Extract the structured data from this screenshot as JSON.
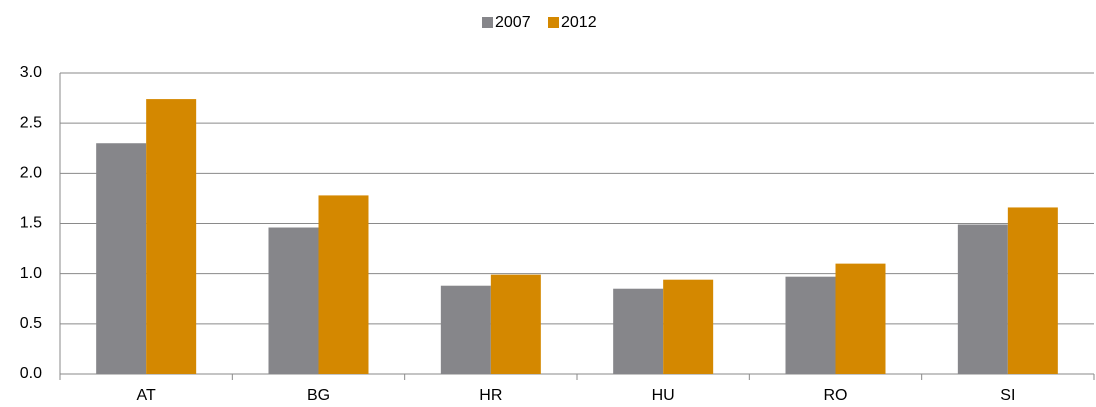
{
  "chart_data": {
    "type": "bar",
    "categories": [
      "AT",
      "BG",
      "HR",
      "HU",
      "RO",
      "SI"
    ],
    "series": [
      {
        "name": "2007",
        "color": "#86868a",
        "values": [
          2.3,
          1.46,
          0.88,
          0.85,
          0.97,
          1.49
        ]
      },
      {
        "name": "2012",
        "color": "#d48800",
        "values": [
          2.74,
          1.78,
          0.99,
          0.94,
          1.1,
          1.66
        ]
      }
    ],
    "ylim": [
      0,
      3
    ],
    "yticks": [
      {
        "value": 0,
        "label": "0.0"
      },
      0.5,
      {
        "value": 1,
        "label": "1.0"
      },
      1.5,
      {
        "value": 2,
        "label": "2.0"
      },
      2.5,
      {
        "value": 3,
        "label": "3.0"
      }
    ],
    "grid": true,
    "legend": "top"
  }
}
